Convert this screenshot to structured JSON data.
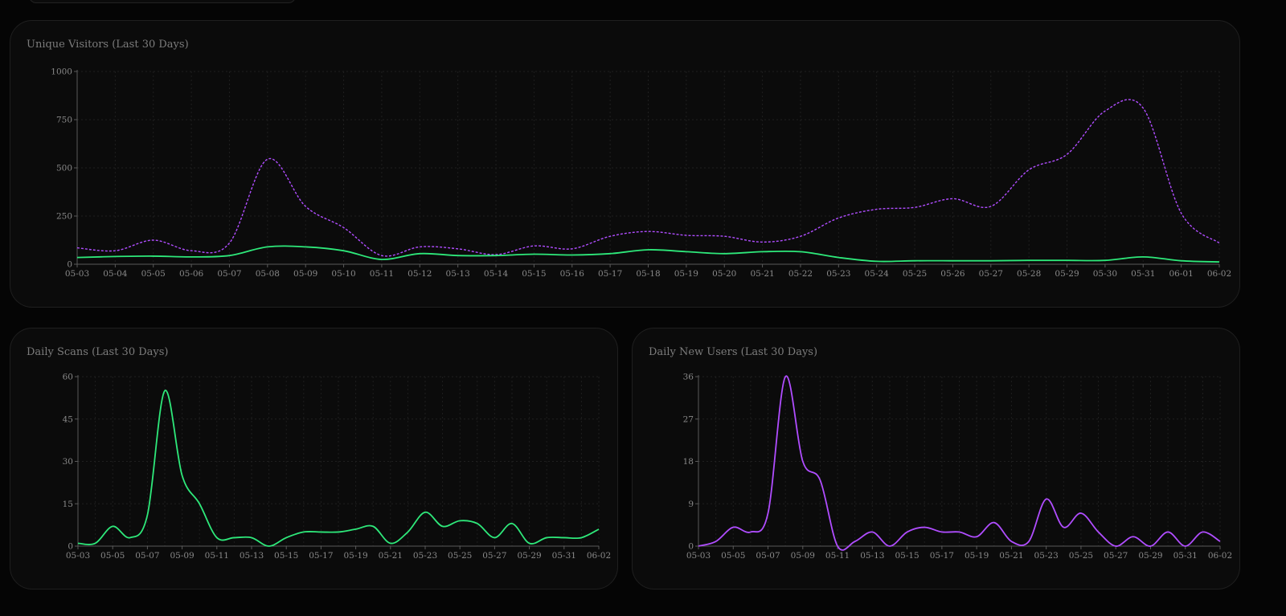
{
  "charts": [
    {
      "id": "visitors",
      "title": "Unique Visitors (Last 30 Days)",
      "colors": {
        "primary": "#2ee87a",
        "secondary": "#b04dff"
      }
    },
    {
      "id": "scans",
      "title": "Daily Scans (Last 30 Days)",
      "colors": {
        "primary": "#2ee87a"
      }
    },
    {
      "id": "newusers",
      "title": "Daily New Users (Last 30 Days)",
      "colors": {
        "primary": "#b04dff"
      }
    }
  ],
  "chart_data": [
    {
      "type": "line",
      "title": "Unique Visitors (Last 30 Days)",
      "x": [
        "05-03",
        "05-04",
        "05-05",
        "05-06",
        "05-07",
        "05-08",
        "05-09",
        "05-10",
        "05-11",
        "05-12",
        "05-13",
        "05-14",
        "05-15",
        "05-16",
        "05-17",
        "05-18",
        "05-19",
        "05-20",
        "05-21",
        "05-22",
        "05-23",
        "05-24",
        "05-25",
        "05-26",
        "05-27",
        "05-28",
        "05-29",
        "05-30",
        "05-31",
        "06-01",
        "06-02"
      ],
      "ylim": [
        0,
        1000
      ],
      "yticks": [
        0,
        250,
        500,
        750,
        1000
      ],
      "grid": true,
      "series": [
        {
          "values": [
            85,
            70,
            125,
            70,
            110,
            545,
            300,
            190,
            45,
            90,
            80,
            50,
            95,
            80,
            145,
            170,
            150,
            145,
            115,
            145,
            240,
            285,
            295,
            340,
            300,
            490,
            570,
            795,
            810,
            265,
            110
          ],
          "style": "dashed",
          "color": "#b04dff"
        },
        {
          "values": [
            35,
            40,
            42,
            38,
            45,
            90,
            90,
            70,
            25,
            55,
            45,
            45,
            52,
            48,
            55,
            75,
            65,
            55,
            65,
            65,
            35,
            15,
            18,
            18,
            18,
            20,
            20,
            20,
            38,
            18,
            12
          ],
          "style": "solid",
          "color": "#2ee87a"
        }
      ]
    },
    {
      "type": "line",
      "title": "Daily Scans (Last 30 Days)",
      "x": [
        "05-03",
        "05-04",
        "05-05",
        "05-06",
        "05-07",
        "05-08",
        "05-09",
        "05-10",
        "05-11",
        "05-12",
        "05-13",
        "05-14",
        "05-15",
        "05-16",
        "05-17",
        "05-18",
        "05-19",
        "05-20",
        "05-21",
        "05-22",
        "05-23",
        "05-24",
        "05-25",
        "05-26",
        "05-27",
        "05-28",
        "05-29",
        "05-30",
        "05-31",
        "06-01",
        "06-02"
      ],
      "xticks": [
        "05-03",
        "05-05",
        "05-07",
        "05-09",
        "05-11",
        "05-13",
        "05-15",
        "05-17",
        "05-19",
        "05-21",
        "05-23",
        "05-25",
        "05-27",
        "05-29",
        "05-31",
        "06-02"
      ],
      "ylim": [
        0,
        60
      ],
      "yticks": [
        0,
        15,
        30,
        45,
        60
      ],
      "grid": true,
      "series": [
        {
          "values": [
            1,
            1,
            7,
            3,
            11,
            55,
            25,
            15,
            3,
            3,
            3,
            0,
            3,
            5,
            5,
            5,
            6,
            7,
            1,
            5,
            12,
            7,
            9,
            8,
            3,
            8,
            1,
            3,
            3,
            3,
            6
          ],
          "style": "solid",
          "color": "#2ee87a"
        }
      ]
    },
    {
      "type": "line",
      "title": "Daily New Users (Last 30 Days)",
      "x": [
        "05-03",
        "05-04",
        "05-05",
        "05-06",
        "05-07",
        "05-08",
        "05-09",
        "05-10",
        "05-11",
        "05-12",
        "05-13",
        "05-14",
        "05-15",
        "05-16",
        "05-17",
        "05-18",
        "05-19",
        "05-20",
        "05-21",
        "05-22",
        "05-23",
        "05-24",
        "05-25",
        "05-26",
        "05-27",
        "05-28",
        "05-29",
        "05-30",
        "05-31",
        "06-01",
        "06-02"
      ],
      "xticks": [
        "05-03",
        "05-05",
        "05-07",
        "05-09",
        "05-11",
        "05-13",
        "05-15",
        "05-17",
        "05-19",
        "05-21",
        "05-23",
        "05-25",
        "05-27",
        "05-29",
        "05-31",
        "06-02"
      ],
      "ylim": [
        0,
        36
      ],
      "yticks": [
        0,
        9,
        18,
        27,
        36
      ],
      "grid": true,
      "series": [
        {
          "values": [
            0,
            1,
            4,
            3,
            7,
            36,
            18,
            14,
            0,
            1,
            3,
            0,
            3,
            4,
            3,
            3,
            2,
            5,
            1,
            1,
            10,
            4,
            7,
            3,
            0,
            2,
            0,
            3,
            0,
            3,
            1
          ],
          "style": "solid",
          "color": "#b04dff"
        }
      ]
    }
  ]
}
